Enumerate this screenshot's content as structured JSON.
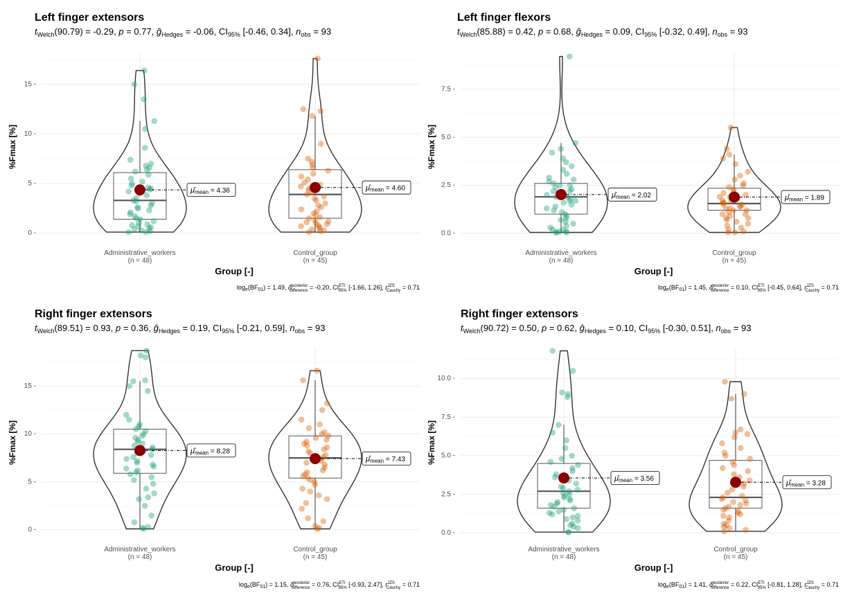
{
  "colors": {
    "admin": "#1b9e77",
    "control": "#d95f02",
    "mean": "#8b0000",
    "outline": "#333333",
    "grid": "#ebebeb"
  },
  "chart_data": [
    {
      "type": "violin-box-scatter",
      "title": "Left finger extensors",
      "subtitle": {
        "stat": "Welch",
        "df": "90.79",
        "t": "-0.29",
        "p": "0.77",
        "g": "-0.06",
        "ci": "[-0.46, 0.34]",
        "n": "93"
      },
      "ylabel": "%Fmax [%]",
      "xlabel": "Group [-]",
      "ylim": [
        -0.8,
        18.2
      ],
      "yticks": [
        0,
        5,
        10,
        15
      ],
      "ytick_labels": [
        "0 -",
        "5 -",
        "10 -",
        "15 -"
      ],
      "categories": [
        "Administrative_workers",
        "Control_group"
      ],
      "n_labels": [
        "(n = 48)",
        "(n = 45)"
      ],
      "groups": [
        {
          "mean": 4.36,
          "mean_label": "4.36",
          "q1": 1.4,
          "median": 3.3,
          "q3": 6.1,
          "lower": 0.1,
          "upper": 11.3,
          "ymin": 0.1,
          "ymax": 16.4,
          "points": [
            16.4,
            15.0,
            13.5,
            11.3,
            10.5,
            8.6,
            7.4,
            7.0,
            6.8,
            6.6,
            6.4,
            6.2,
            5.9,
            5.5,
            5.2,
            5.0,
            4.8,
            4.6,
            4.5,
            4.4,
            4.2,
            4.0,
            3.8,
            3.5,
            3.3,
            3.2,
            3.0,
            2.8,
            2.6,
            2.5,
            2.3,
            2.1,
            1.9,
            1.7,
            1.5,
            1.4,
            1.2,
            1.0,
            0.9,
            0.8,
            0.7,
            0.6,
            0.5,
            0.4,
            0.3,
            0.2,
            0.1,
            0.1
          ]
        },
        {
          "mean": 4.6,
          "mean_label": "4.60",
          "q1": 1.5,
          "median": 3.9,
          "q3": 6.4,
          "lower": 0.1,
          "upper": 11.8,
          "ymin": 0.1,
          "ymax": 17.6,
          "points": [
            17.6,
            12.5,
            12.3,
            11.8,
            9.0,
            7.5,
            7.2,
            6.9,
            6.6,
            6.3,
            6.0,
            5.7,
            5.4,
            5.1,
            4.9,
            4.7,
            4.5,
            4.3,
            4.1,
            3.9,
            3.7,
            3.5,
            3.3,
            3.0,
            2.8,
            2.6,
            2.4,
            2.2,
            2.0,
            1.8,
            1.6,
            1.5,
            1.3,
            1.2,
            1.1,
            1.0,
            0.9,
            0.8,
            0.7,
            0.6,
            0.5,
            0.4,
            0.3,
            0.2,
            0.1
          ]
        }
      ],
      "bf": {
        "log": "1.49",
        "delta": "-0.20",
        "ci": "[-1.66, 1.26]",
        "r": "0.71"
      }
    },
    {
      "type": "violin-box-scatter",
      "title": "Left finger flexors",
      "subtitle": {
        "stat": "Welch",
        "df": "85.88",
        "t": "0.42",
        "p": "0.68",
        "g": "0.09",
        "ci": "[-0.32, 0.49]",
        "n": "93"
      },
      "ylabel": "%Fmax [%]",
      "xlabel": "Group [-]",
      "ylim": [
        -0.4,
        9.4
      ],
      "yticks": [
        0,
        2.5,
        5,
        7.5
      ],
      "ytick_labels": [
        "0.0 -",
        "2.5 -",
        "5.0 -",
        "7.5 -"
      ],
      "categories": [
        "Administrative_workers",
        "Control_group"
      ],
      "n_labels": [
        "(n = 48)",
        "(n = 45)"
      ],
      "groups": [
        {
          "mean": 2.02,
          "mean_label": "2.02",
          "q1": 1.0,
          "median": 1.9,
          "q3": 2.6,
          "lower": 0.05,
          "upper": 4.7,
          "ymin": 0.05,
          "ymax": 9.2,
          "points": [
            9.2,
            4.7,
            4.4,
            4.2,
            3.9,
            3.7,
            3.5,
            3.3,
            3.1,
            2.9,
            2.8,
            2.7,
            2.6,
            2.5,
            2.5,
            2.4,
            2.3,
            2.2,
            2.2,
            2.1,
            2.0,
            2.0,
            1.9,
            1.9,
            1.8,
            1.7,
            1.7,
            1.6,
            1.5,
            1.4,
            1.3,
            1.2,
            1.1,
            1.0,
            0.9,
            0.8,
            0.7,
            0.6,
            0.5,
            0.4,
            0.3,
            0.2,
            0.2,
            0.1,
            0.1,
            0.05,
            0.05,
            0.05
          ]
        },
        {
          "mean": 1.89,
          "mean_label": "1.89",
          "q1": 1.2,
          "median": 1.55,
          "q3": 2.35,
          "lower": 0.05,
          "upper": 4.1,
          "ymin": 0.05,
          "ymax": 5.5,
          "points": [
            5.5,
            4.4,
            4.1,
            3.9,
            3.6,
            3.2,
            3.0,
            2.8,
            2.6,
            2.5,
            2.4,
            2.3,
            2.2,
            2.1,
            2.0,
            1.9,
            1.9,
            1.8,
            1.7,
            1.7,
            1.6,
            1.6,
            1.5,
            1.5,
            1.4,
            1.4,
            1.3,
            1.3,
            1.2,
            1.2,
            1.1,
            1.0,
            1.0,
            0.9,
            0.8,
            0.8,
            0.7,
            0.6,
            0.5,
            0.4,
            0.3,
            0.2,
            0.1,
            0.05,
            0.05
          ]
        }
      ],
      "bf": {
        "log": "1.45",
        "delta": "0.10",
        "ci": "[-0.45, 0.64]",
        "r": "0.71"
      }
    },
    {
      "type": "violin-box-scatter",
      "title": "Right finger extensors",
      "subtitle": {
        "stat": "Welch",
        "df": "89.51",
        "t": "0.93",
        "p": "0.36",
        "g": "0.19",
        "ci": "[-0.21, 0.59]",
        "n": "93"
      },
      "ylabel": "%Fmax [%]",
      "xlabel": "Group [-]",
      "ylim": [
        -0.8,
        19.0
      ],
      "yticks": [
        0,
        5,
        10,
        15
      ],
      "ytick_labels": [
        "0 -",
        "5 -",
        "10 -",
        "15 -"
      ],
      "categories": [
        "Administrative_workers",
        "Control_group"
      ],
      "n_labels": [
        "(n = 48)",
        "(n = 45)"
      ],
      "groups": [
        {
          "mean": 8.28,
          "mean_label": "8.28",
          "q1": 5.9,
          "median": 8.4,
          "q3": 10.5,
          "lower": 0.1,
          "upper": 15.5,
          "ymin": 0.1,
          "ymax": 18.7,
          "points": [
            18.7,
            18.2,
            18.0,
            15.6,
            15.5,
            15.0,
            14.5,
            12.0,
            11.5,
            11.0,
            10.8,
            10.5,
            10.3,
            10.0,
            9.8,
            9.6,
            9.4,
            9.2,
            9.0,
            8.8,
            8.6,
            8.4,
            8.2,
            8.0,
            7.8,
            7.6,
            7.4,
            7.2,
            7.0,
            6.8,
            6.6,
            6.4,
            6.2,
            6.0,
            5.8,
            5.5,
            5.2,
            4.8,
            4.3,
            3.8,
            3.4,
            3.2,
            2.5,
            1.5,
            0.8,
            0.3,
            0.2,
            0.1
          ]
        },
        {
          "mean": 7.43,
          "mean_label": "7.43",
          "q1": 5.4,
          "median": 7.5,
          "q3": 9.8,
          "lower": 0.1,
          "upper": 15.6,
          "ymin": 0.1,
          "ymax": 16.6,
          "points": [
            16.6,
            15.6,
            13.2,
            12.5,
            11.5,
            11.0,
            10.6,
            10.2,
            10.0,
            9.8,
            9.6,
            9.4,
            9.2,
            9.0,
            8.8,
            8.6,
            8.4,
            8.2,
            8.0,
            7.8,
            7.6,
            7.4,
            7.2,
            7.0,
            6.8,
            6.5,
            6.2,
            6.0,
            5.8,
            5.6,
            5.4,
            5.2,
            5.0,
            4.7,
            4.3,
            4.0,
            3.6,
            3.2,
            2.8,
            2.2,
            1.2,
            0.9,
            0.4,
            0.2,
            0.1
          ]
        }
      ],
      "bf": {
        "log": "1.15",
        "delta": "0.76",
        "ci": "[-0.93, 2.47]",
        "r": "0.71"
      }
    },
    {
      "type": "violin-box-scatter",
      "title": "Right finger extensors",
      "subtitle": {
        "stat": "Welch",
        "df": "90.72",
        "t": "0.50",
        "p": "0.62",
        "g": "0.10",
        "ci": "[-0.30, 0.51]",
        "n": "93"
      },
      "ylabel": "%Fmax [%]",
      "xlabel": "Group [-]",
      "ylim": [
        -0.3,
        12.0
      ],
      "yticks": [
        0,
        2.5,
        5,
        7.5,
        10
      ],
      "ytick_labels": [
        "0.0 -",
        "2.5 -",
        "5.0 -",
        "7.5 -",
        "10.0 -"
      ],
      "categories": [
        "Administrative_workers",
        "Control_group"
      ],
      "n_labels": [
        "(n = 48)",
        "(n = 45)"
      ],
      "groups": [
        {
          "mean": 3.56,
          "mean_label": "3.56",
          "q1": 1.6,
          "median": 2.7,
          "q3": 4.5,
          "lower": 0.05,
          "upper": 7.0,
          "ymin": 0.05,
          "ymax": 11.8,
          "points": [
            11.8,
            10.5,
            9.1,
            9.0,
            8.8,
            7.0,
            6.5,
            6.0,
            5.5,
            5.0,
            4.8,
            4.6,
            4.4,
            4.2,
            4.0,
            3.8,
            3.6,
            3.4,
            3.2,
            3.0,
            2.9,
            2.8,
            2.7,
            2.6,
            2.5,
            2.4,
            2.3,
            2.2,
            2.1,
            2.0,
            1.9,
            1.8,
            1.7,
            1.6,
            1.5,
            1.4,
            1.3,
            1.2,
            1.1,
            1.0,
            0.9,
            0.8,
            0.6,
            0.5,
            0.4,
            0.3,
            0.05,
            0.05
          ]
        },
        {
          "mean": 3.28,
          "mean_label": "3.28",
          "q1": 1.6,
          "median": 2.3,
          "q3": 4.7,
          "lower": 0.1,
          "upper": 9.0,
          "ymin": 0.1,
          "ymax": 9.8,
          "points": [
            9.8,
            9.0,
            8.7,
            6.7,
            6.5,
            6.4,
            6.2,
            5.8,
            5.5,
            5.2,
            5.0,
            4.8,
            4.6,
            4.4,
            4.2,
            4.0,
            3.8,
            3.6,
            3.4,
            3.2,
            3.0,
            2.8,
            2.6,
            2.4,
            2.3,
            2.2,
            2.1,
            2.0,
            1.9,
            1.8,
            1.7,
            1.6,
            1.5,
            1.4,
            1.3,
            1.2,
            1.1,
            1.0,
            0.8,
            0.6,
            0.5,
            0.4,
            0.3,
            0.2,
            0.1
          ]
        }
      ],
      "bf": {
        "log": "1.41",
        "delta": "0.22",
        "ci": "[-0.81, 1.28]",
        "r": "0.71"
      }
    }
  ]
}
